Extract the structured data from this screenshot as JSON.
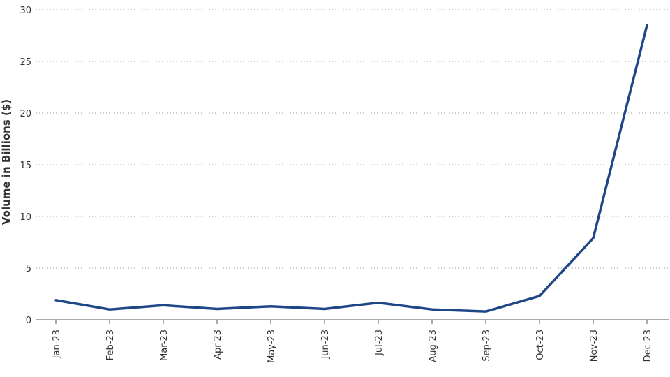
{
  "chart_data": {
    "type": "line",
    "title": "",
    "xlabel": "",
    "ylabel": "Volume in Billions ($)",
    "categories": [
      "Jan-23",
      "Feb-23",
      "Mar-23",
      "Apr-23",
      "May-23",
      "Jun-23",
      "Jul-23",
      "Aug-23",
      "Sep-23",
      "Oct-23",
      "Nov-23",
      "Dec-23"
    ],
    "series": [
      {
        "values": [
          1.9,
          1.0,
          1.4,
          1.05,
          1.3,
          1.05,
          1.65,
          1.0,
          0.8,
          2.3,
          7.9,
          28.5
        ],
        "color": "#1f4788"
      }
    ],
    "ylim": [
      0,
      30
    ],
    "yticks": [
      0,
      5,
      10,
      15,
      20,
      25,
      30
    ],
    "grid": true,
    "legend": "none"
  }
}
